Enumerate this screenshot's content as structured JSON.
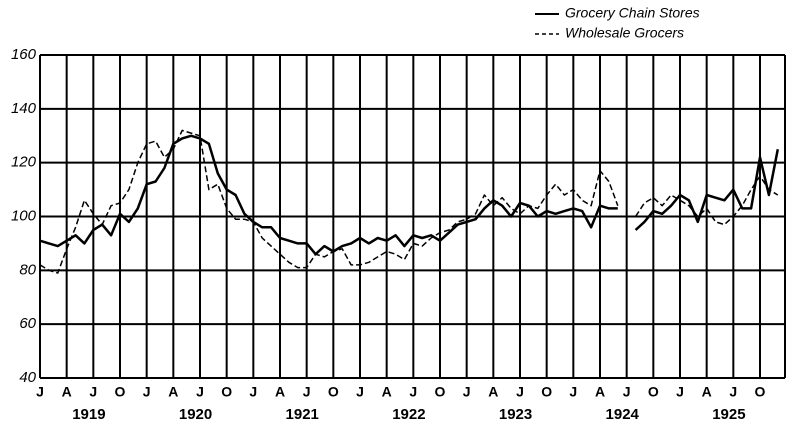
{
  "chart_data": {
    "type": "line",
    "categories": [
      "J",
      null,
      null,
      "A",
      null,
      null,
      "J",
      null,
      null,
      "O",
      null,
      null,
      "J",
      null,
      null,
      "A",
      null,
      null,
      "J",
      null,
      null,
      "O",
      null,
      null,
      "J",
      null,
      null,
      "A",
      null,
      null,
      "J",
      null,
      null,
      "O",
      null,
      null,
      "J",
      null,
      null,
      "A",
      null,
      null,
      "J",
      null,
      null,
      "O",
      null,
      null,
      "J",
      null,
      null,
      "A",
      null,
      null,
      "J",
      null,
      null,
      "O",
      null,
      null,
      "J",
      null,
      null,
      "A",
      null,
      null,
      "J",
      null,
      null,
      "O",
      null,
      null,
      "J",
      null,
      null,
      "A",
      null,
      null,
      "J",
      null,
      null,
      "O",
      null,
      null
    ],
    "year_labels": [
      "1919",
      "1920",
      "1921",
      "1922",
      "1923",
      "1924",
      "1925"
    ],
    "series": [
      {
        "name": "Grocery Chain Stores",
        "color": "#000000",
        "line_style": "solid",
        "values": [
          91,
          90,
          89,
          91,
          93,
          90,
          95,
          97,
          93,
          101,
          98,
          103,
          112,
          113,
          118,
          127,
          129,
          130,
          129,
          127,
          116,
          110,
          108,
          101,
          98,
          96,
          96,
          92,
          91,
          90,
          90,
          86,
          89,
          87,
          89,
          90,
          92,
          90,
          92,
          91,
          93,
          89,
          93,
          92,
          93,
          91,
          94,
          97,
          98,
          99,
          103,
          106,
          104,
          100,
          105,
          104,
          100,
          102,
          101,
          102,
          103,
          102,
          96,
          104,
          103,
          103,
          null,
          95,
          98,
          102,
          101,
          104,
          108,
          106,
          98,
          108,
          107,
          106,
          110,
          103,
          103,
          122,
          108,
          125
        ]
      },
      {
        "name": "Wholesale Grocers",
        "color": "#000000",
        "line_style": "dashed",
        "values": [
          82,
          80,
          79,
          88,
          96,
          106,
          101,
          97,
          104,
          105,
          110,
          120,
          127,
          128,
          122,
          125,
          132,
          131,
          130,
          110,
          112,
          103,
          99,
          99,
          98,
          92,
          89,
          86,
          83,
          81,
          81,
          86,
          85,
          87,
          88,
          82,
          82,
          83,
          85,
          87,
          86,
          84,
          90,
          89,
          92,
          94,
          95,
          98,
          99,
          101,
          108,
          104,
          107,
          103,
          101,
          104,
          103,
          108,
          112,
          108,
          110,
          106,
          104,
          117,
          113,
          104,
          null,
          100,
          105,
          107,
          104,
          108,
          106,
          104,
          100,
          103,
          98,
          97,
          100,
          104,
          110,
          115,
          110,
          108
        ]
      }
    ],
    "ylim": [
      40,
      160
    ],
    "yticks": [
      40,
      60,
      80,
      100,
      120,
      140,
      160
    ],
    "grid": true,
    "legend": "top-right"
  }
}
